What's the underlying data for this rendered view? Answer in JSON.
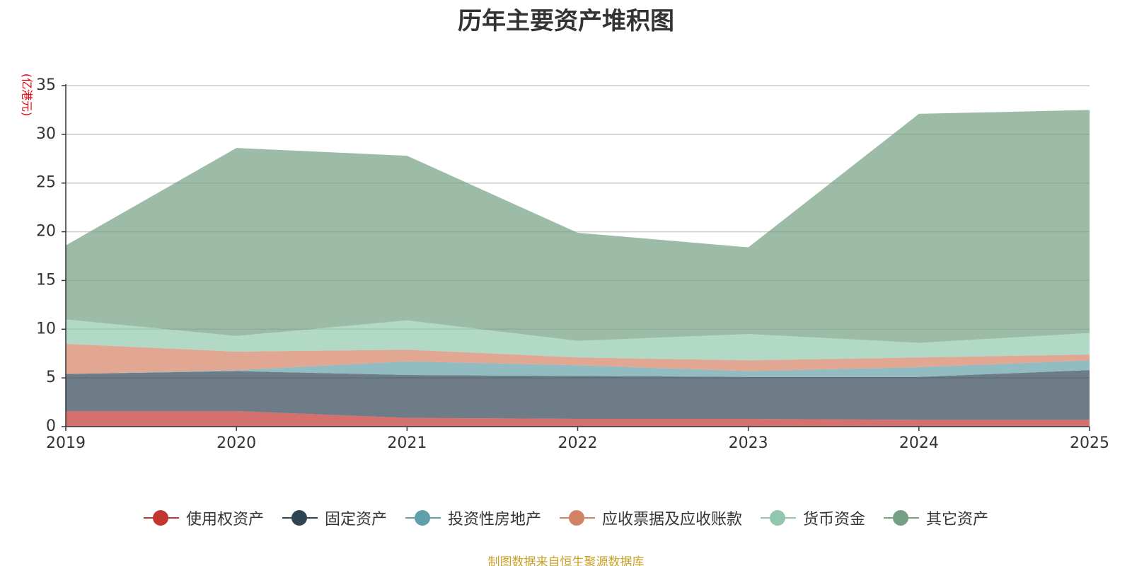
{
  "chart_data": {
    "type": "area",
    "stacked": true,
    "title": "历年主要资产堆积图",
    "ylabel": "(亿港元)",
    "xlabel": "",
    "x": [
      "2019",
      "2020",
      "2021",
      "2022",
      "2023",
      "2024",
      "2025"
    ],
    "ylim": [
      0,
      35
    ],
    "yticks": [
      0,
      5,
      10,
      15,
      20,
      25,
      30,
      35
    ],
    "grid": true,
    "legend_position": "bottom",
    "series": [
      {
        "name": "使用权资产",
        "color": "#c23531",
        "values": [
          1.6,
          1.6,
          0.9,
          0.8,
          0.8,
          0.7,
          0.7
        ]
      },
      {
        "name": "固定资产",
        "color": "#2f4554",
        "values": [
          3.8,
          4.1,
          4.4,
          4.4,
          4.3,
          4.4,
          5.1
        ]
      },
      {
        "name": "投资性房地产",
        "color": "#61a0a8",
        "values": [
          0.0,
          0.1,
          1.4,
          1.1,
          0.6,
          1.0,
          1.0
        ]
      },
      {
        "name": "应收票据及应收账款",
        "color": "#d48265",
        "values": [
          3.1,
          1.9,
          1.2,
          0.8,
          1.1,
          1.0,
          0.6
        ]
      },
      {
        "name": "货币资金",
        "color": "#91c7ae",
        "values": [
          2.5,
          1.6,
          3.0,
          1.7,
          2.7,
          1.5,
          2.2
        ]
      },
      {
        "name": "其它资产",
        "color": "#749f83",
        "values": [
          7.6,
          19.3,
          16.9,
          11.1,
          8.9,
          23.5,
          22.9
        ]
      }
    ]
  },
  "source_note": "制图数据来自恒生聚源数据库"
}
